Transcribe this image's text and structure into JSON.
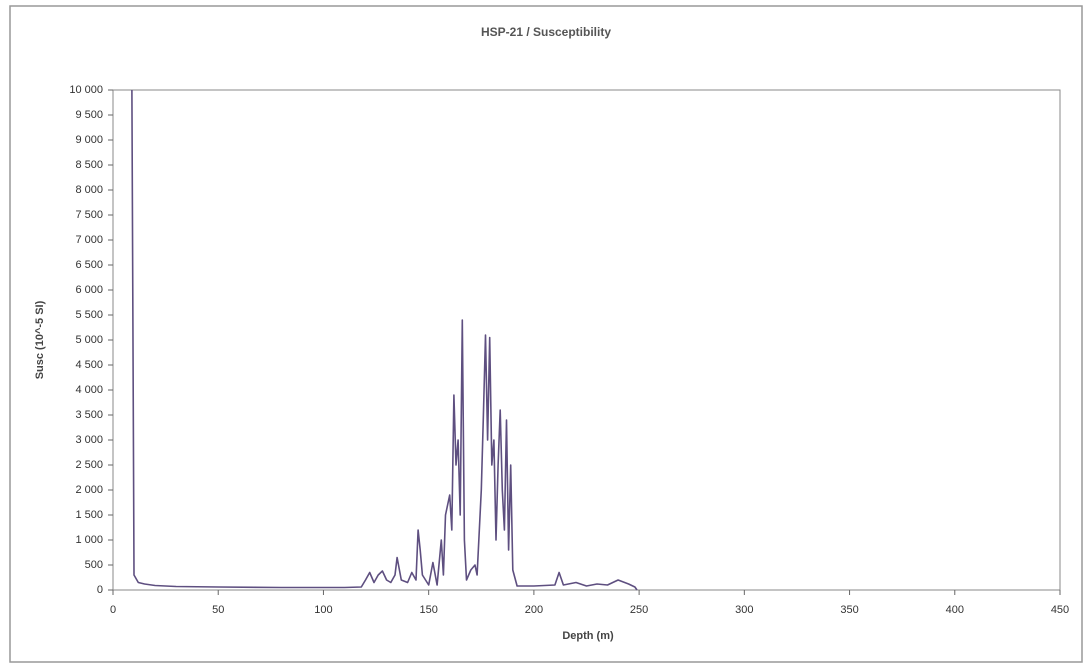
{
  "chart_data": {
    "type": "line",
    "title": "HSP-21 / Susceptibility",
    "xlabel": "Depth (m)",
    "ylabel": "Susc (10^-5 SI)",
    "color": "#5e4f80",
    "grid": false,
    "xlim": [
      0,
      450
    ],
    "xticks": [
      0,
      50,
      100,
      150,
      200,
      250,
      300,
      350,
      400,
      450
    ],
    "ylim": [
      0,
      10000
    ],
    "yticks": [
      0,
      500,
      {
        "value": 1000,
        "label": "1 000"
      },
      {
        "value": 1500,
        "label": "1 500"
      },
      {
        "value": 2000,
        "label": "2 000"
      },
      {
        "value": 2500,
        "label": "2 500"
      },
      {
        "value": 3000,
        "label": "3 000"
      },
      {
        "value": 3500,
        "label": "3 500"
      },
      {
        "value": 4000,
        "label": "4 000"
      },
      {
        "value": 4500,
        "label": "4 500"
      },
      {
        "value": 5000,
        "label": "5 000"
      },
      {
        "value": 5500,
        "label": "5 500"
      },
      {
        "value": 6000,
        "label": "6 000"
      },
      {
        "value": 6500,
        "label": "6 500"
      },
      {
        "value": 7000,
        "label": "7 000"
      },
      {
        "value": 7500,
        "label": "7 500"
      },
      {
        "value": 8000,
        "label": "8 000"
      },
      {
        "value": 8500,
        "label": "8 500"
      },
      {
        "value": 9000,
        "label": "9 000"
      },
      {
        "value": 9500,
        "label": "9 500"
      },
      {
        "value": 10000,
        "label": "10 000"
      }
    ],
    "x": [
      9,
      10,
      12,
      15,
      20,
      30,
      50,
      80,
      110,
      118,
      120,
      122,
      124,
      126,
      128,
      130,
      132,
      134,
      135,
      137,
      140,
      142,
      144,
      145,
      146,
      147,
      150,
      152,
      154,
      156,
      157,
      158,
      160,
      161,
      162,
      163,
      164,
      165,
      166,
      167,
      168,
      170,
      172,
      173,
      175,
      176,
      177,
      178,
      179,
      180,
      181,
      182,
      183,
      184,
      185,
      186,
      187,
      188,
      189,
      190,
      192,
      200,
      210,
      212,
      214,
      220,
      225,
      230,
      235,
      240,
      245,
      248,
      249
    ],
    "values": [
      10000,
      300,
      150,
      120,
      90,
      70,
      60,
      50,
      50,
      60,
      200,
      350,
      150,
      300,
      380,
      200,
      150,
      300,
      650,
      200,
      150,
      350,
      200,
      1200,
      800,
      300,
      100,
      550,
      100,
      1000,
      300,
      1500,
      1900,
      1200,
      3900,
      2500,
      3000,
      1500,
      5400,
      1000,
      200,
      400,
      500,
      300,
      2000,
      3500,
      5100,
      3000,
      5050,
      2500,
      3000,
      1000,
      2500,
      3600,
      2000,
      1200,
      3400,
      800,
      2500,
      400,
      80,
      80,
      100,
      350,
      100,
      150,
      80,
      120,
      100,
      200,
      120,
      60,
      0
    ]
  }
}
